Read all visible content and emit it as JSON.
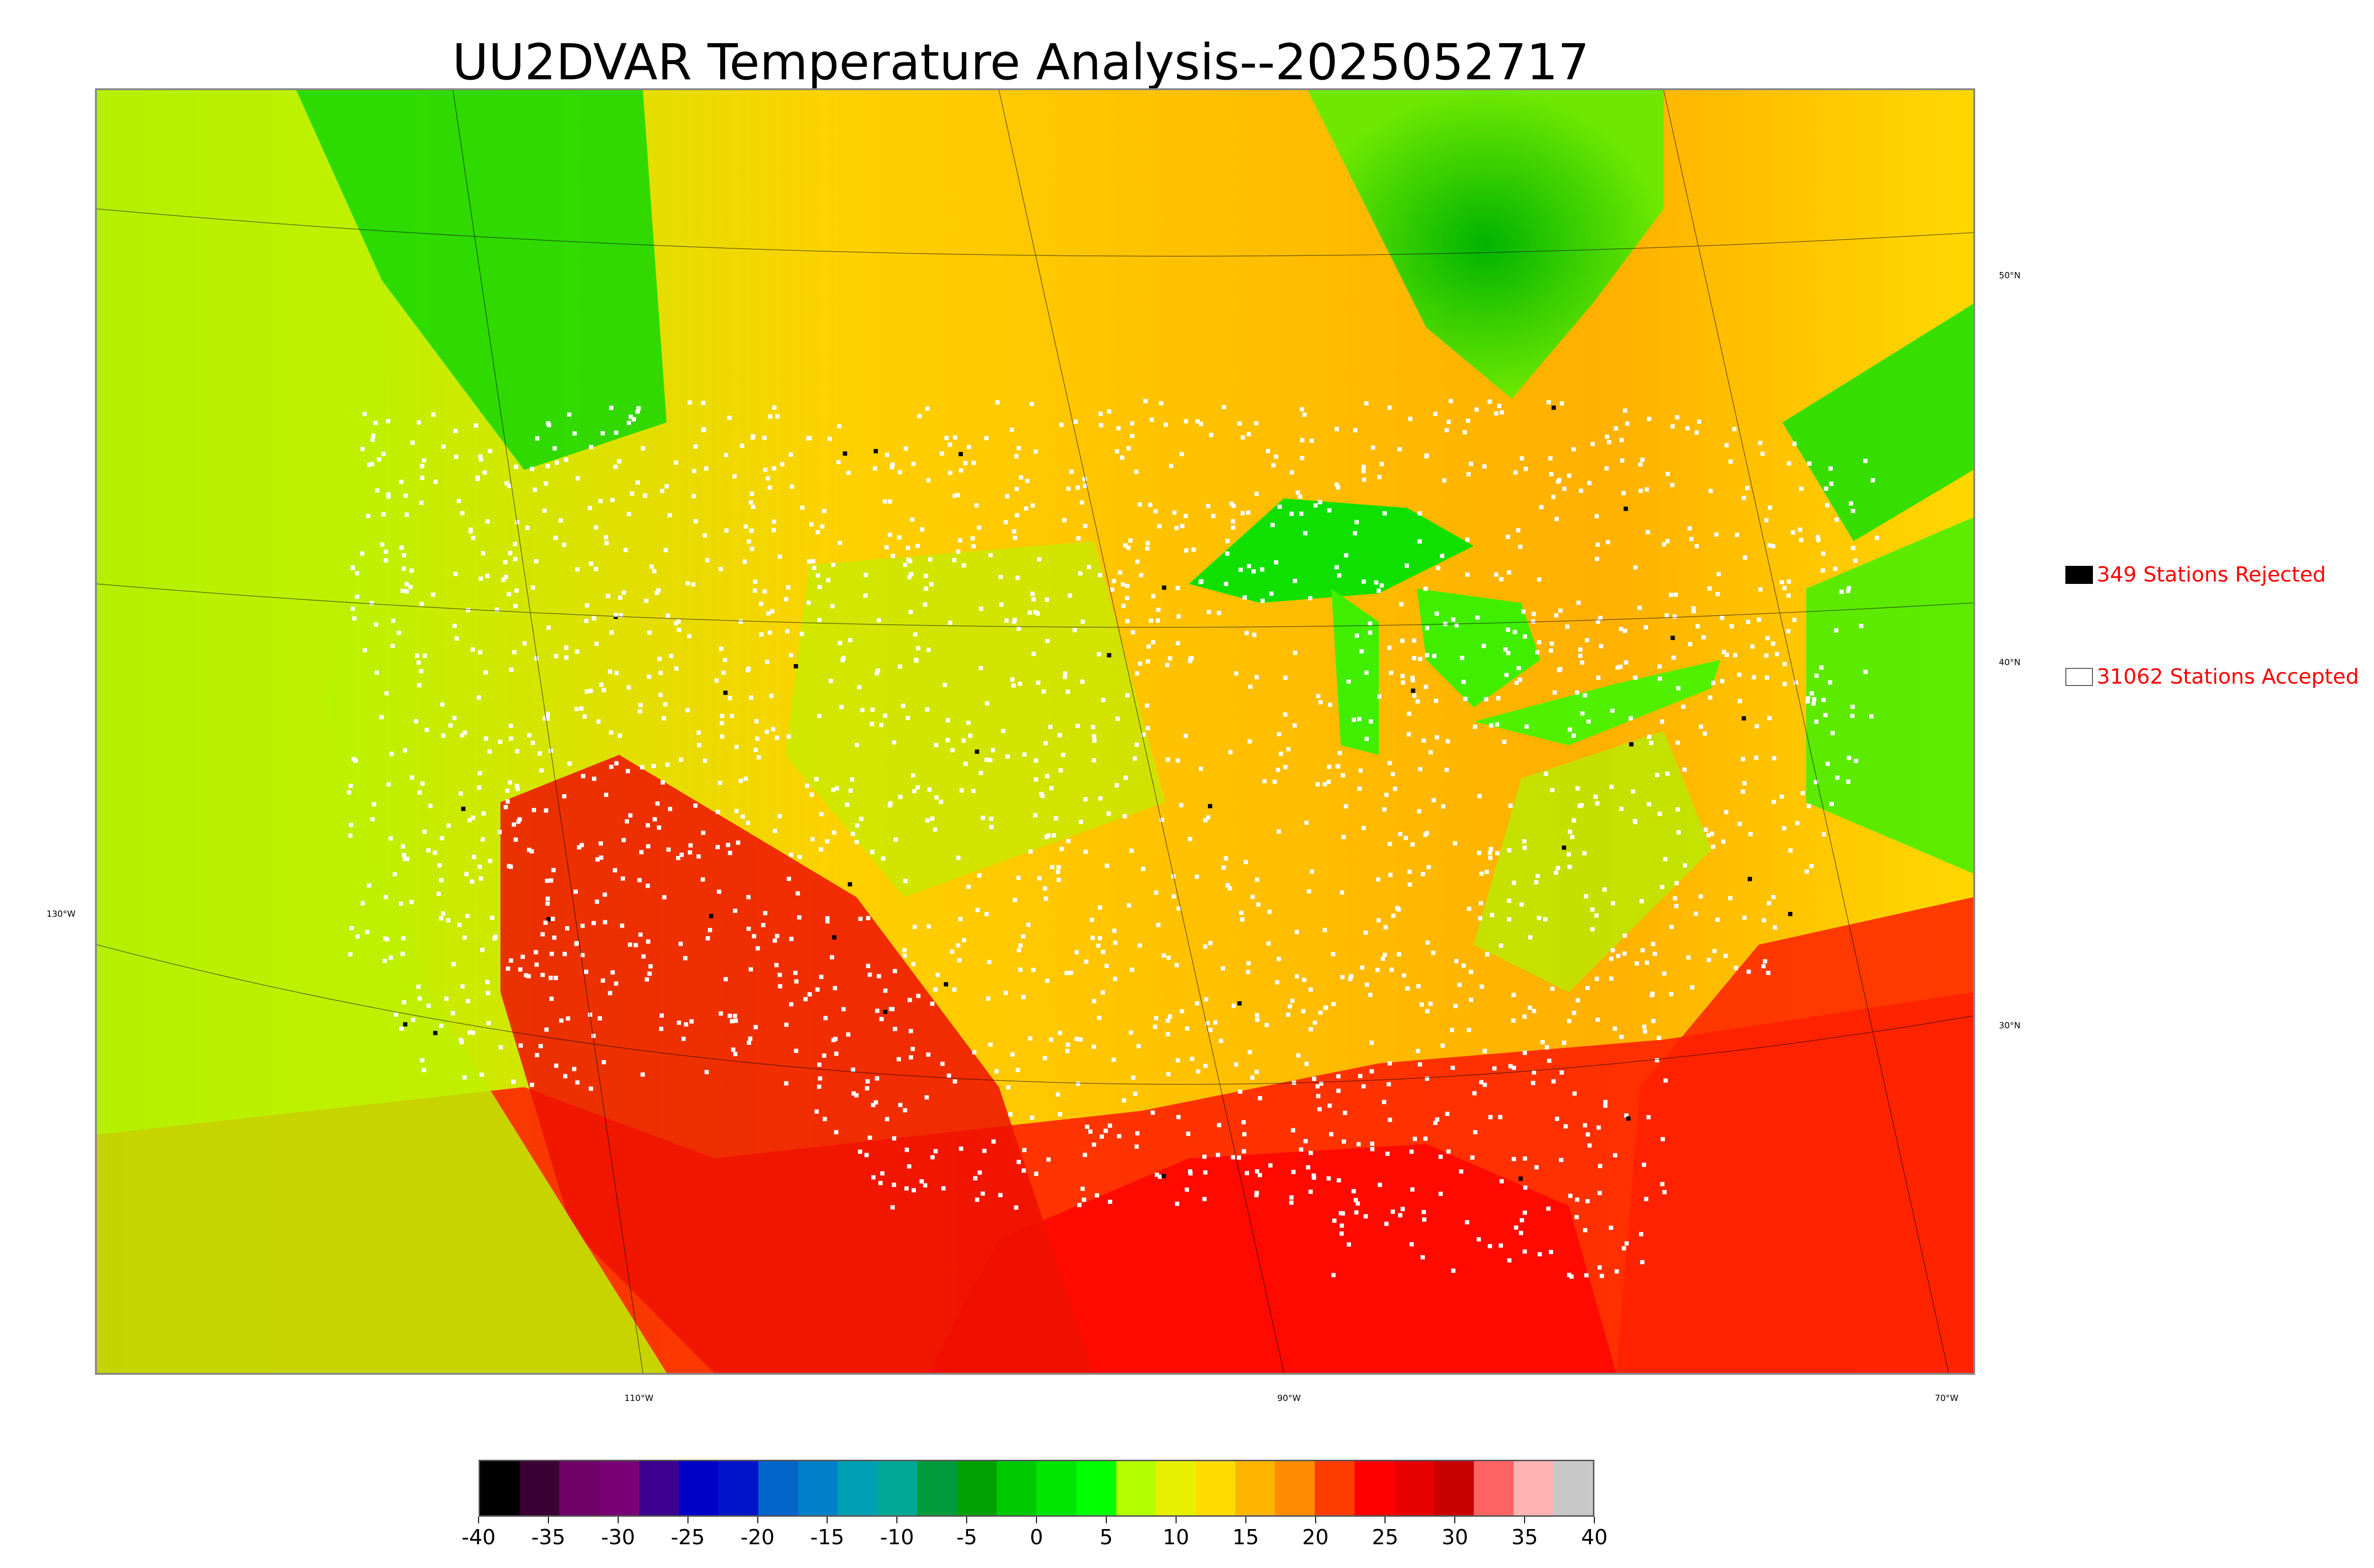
{
  "title": "UU2DVAR Temperature Analysis--2025052717",
  "legend": {
    "rejected": {
      "label": "349 Stations Rejected",
      "color": "#000000"
    },
    "accepted": {
      "label": "31062 Stations Accepted",
      "color": "#ffffff"
    }
  },
  "map": {
    "longitude_labels": [
      "130°W",
      "110°W",
      "90°W",
      "70°W"
    ],
    "latitude_labels": [
      "50°N",
      "40°N",
      "30°N"
    ]
  },
  "colorbar": {
    "tick_labels": [
      "-40",
      "-35",
      "-30",
      "-25",
      "-20",
      "-15",
      "-10",
      "-5",
      "0",
      "5",
      "10",
      "15",
      "20",
      "25",
      "30",
      "35",
      "40"
    ],
    "range": [
      -40,
      40
    ],
    "colors": [
      "#000000",
      "#3a0033",
      "#6e0066",
      "#7a0075",
      "#3b0090",
      "#0000c8",
      "#0014c8",
      "#0064c8",
      "#0080c8",
      "#00a0b4",
      "#00a896",
      "#009b3c",
      "#00a000",
      "#00c800",
      "#00e600",
      "#00ff00",
      "#b4ff00",
      "#e6f000",
      "#ffdc00",
      "#ffb400",
      "#ff8c00",
      "#ff3c00",
      "#ff0000",
      "#e60000",
      "#c80000",
      "#ff6464",
      "#ffb4b4",
      "#c8c8c8"
    ]
  }
}
